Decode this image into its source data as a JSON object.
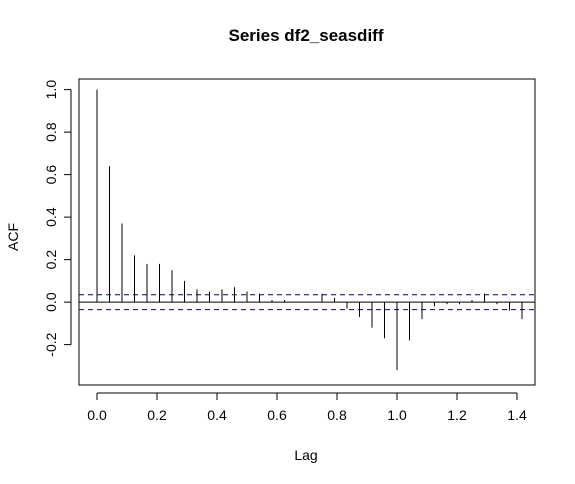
{
  "chart_data": {
    "type": "bar",
    "title": "Series  df2_seasdiff",
    "xlabel": "Lag",
    "ylabel": "ACF",
    "xlim": [
      -0.06,
      1.46
    ],
    "ylim": [
      -0.39,
      1.05
    ],
    "xticks": [
      "0.0",
      "0.2",
      "0.4",
      "0.6",
      "0.8",
      "1.0",
      "1.2",
      "1.4"
    ],
    "yticks": [
      "-0.2",
      "0.0",
      "0.2",
      "0.4",
      "0.6",
      "0.8",
      "1.0"
    ],
    "confidence_bound": 0.035,
    "bar_color": "#000000",
    "bound_color": "#00008B",
    "grid": false,
    "lags": [
      0.0,
      0.0417,
      0.0833,
      0.125,
      0.1667,
      0.2083,
      0.25,
      0.2917,
      0.3333,
      0.375,
      0.4167,
      0.4583,
      0.5,
      0.5417,
      0.5833,
      0.625,
      0.6667,
      0.7083,
      0.75,
      0.7917,
      0.8333,
      0.875,
      0.9167,
      0.9583,
      1.0,
      1.0417,
      1.0833,
      1.125,
      1.1667,
      1.2083,
      1.25,
      1.2917,
      1.3333,
      1.375,
      1.4167
    ],
    "values": [
      1.0,
      0.64,
      0.37,
      0.22,
      0.18,
      0.18,
      0.15,
      0.1,
      0.06,
      0.05,
      0.06,
      0.07,
      0.05,
      0.04,
      0.01,
      0.01,
      0.0,
      0.0,
      0.04,
      0.02,
      -0.03,
      -0.07,
      -0.12,
      -0.17,
      -0.32,
      -0.18,
      -0.08,
      -0.02,
      -0.01,
      -0.01,
      0.01,
      0.04,
      -0.01,
      -0.04,
      -0.08
    ]
  }
}
